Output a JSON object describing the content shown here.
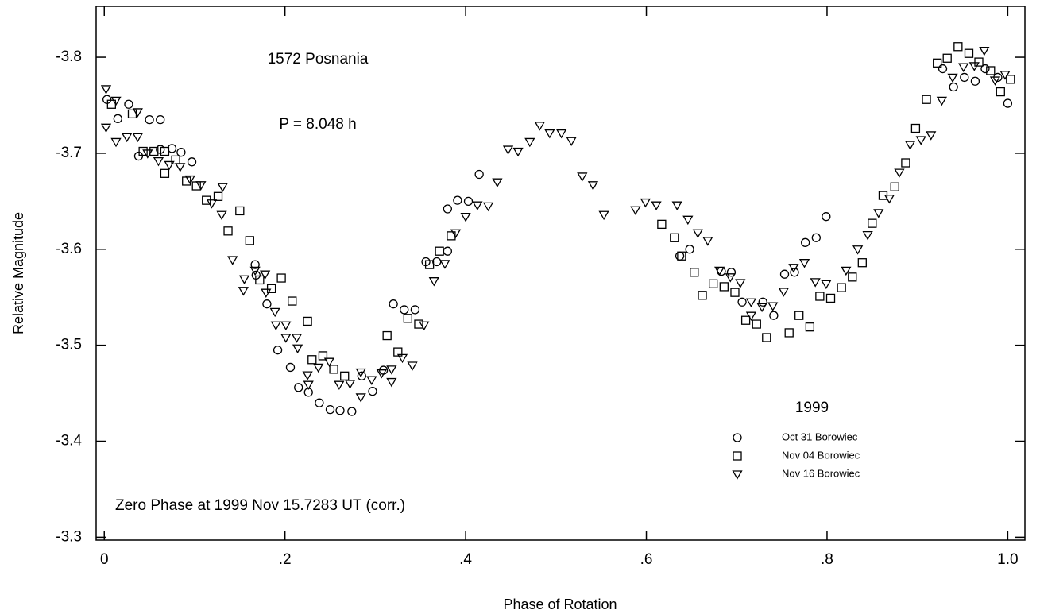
{
  "chart_data": {
    "type": "scatter",
    "annotations": [
      "1572 Posnania",
      "P = 8.048 h",
      "Zero Phase at 1999 Nov 15.7283 UT (corr.)"
    ],
    "x_label": "Phase of Rotation",
    "y_label": "Relative Magnitude",
    "legend_title": "1999",
    "legend": "lower right",
    "xlim": [
      -0.009,
      1.019
    ],
    "ylim": [
      -3.297,
      -3.853
    ],
    "xticks": [
      0,
      {
        "value": 0.2,
        "label": ".2"
      },
      {
        "value": 0.4,
        "label": ".4"
      },
      {
        "value": 0.6,
        "label": ".6"
      },
      {
        "value": 0.8,
        "label": ".8"
      },
      {
        "value": 1,
        "label": "1.0"
      }
    ],
    "yticks": [
      -3.8,
      -3.7,
      -3.6,
      -3.5,
      -3.4,
      -3.3
    ],
    "series": [
      {
        "name": "Oct 31 Borowiec",
        "color": "#000000",
        "marker": "circle",
        "x": [
          0.003,
          0.015,
          0.027,
          0.038,
          0.05,
          0.062,
          0.062,
          0.075,
          0.085,
          0.097,
          0.167,
          0.168,
          0.18,
          0.192,
          0.206,
          0.215,
          0.226,
          0.238,
          0.25,
          0.261,
          0.274,
          0.285,
          0.297,
          0.309,
          0.32,
          0.332,
          0.344,
          0.356,
          0.368,
          0.38,
          0.38,
          0.391,
          0.403,
          0.415,
          0.637,
          0.648,
          0.683,
          0.694,
          0.706,
          0.729,
          0.741,
          0.753,
          0.764,
          0.776,
          0.788,
          0.799,
          0.928,
          0.94,
          0.952,
          0.964,
          0.975,
          0.989,
          1.0
        ],
        "values": [
          -3.756,
          -3.736,
          -3.751,
          -3.697,
          -3.735,
          -3.735,
          -3.704,
          -3.705,
          -3.701,
          -3.691,
          -3.584,
          -3.573,
          -3.543,
          -3.495,
          -3.477,
          -3.456,
          -3.451,
          -3.44,
          -3.433,
          -3.432,
          -3.431,
          -3.468,
          -3.452,
          -3.474,
          -3.543,
          -3.537,
          -3.537,
          -3.587,
          -3.587,
          -3.598,
          -3.642,
          -3.651,
          -3.65,
          -3.678,
          -3.593,
          -3.6,
          -3.577,
          -3.576,
          -3.545,
          -3.545,
          -3.531,
          -3.574,
          -3.576,
          -3.607,
          -3.612,
          -3.634,
          -3.788,
          -3.769,
          -3.779,
          -3.775,
          -3.788,
          -3.779,
          -3.752
        ]
      },
      {
        "name": "Nov 04 Borowiec",
        "color": "#000000",
        "marker": "square",
        "x": [
          0.008,
          0.031,
          0.043,
          0.055,
          0.067,
          0.067,
          0.079,
          0.091,
          0.102,
          0.113,
          0.126,
          0.137,
          0.15,
          0.161,
          0.172,
          0.185,
          0.196,
          0.208,
          0.225,
          0.23,
          0.242,
          0.254,
          0.266,
          0.313,
          0.325,
          0.336,
          0.348,
          0.36,
          0.371,
          0.384,
          0.617,
          0.631,
          0.639,
          0.653,
          0.662,
          0.674,
          0.686,
          0.698,
          0.71,
          0.722,
          0.733,
          0.758,
          0.769,
          0.781,
          0.792,
          0.804,
          0.816,
          0.828,
          0.839,
          0.85,
          0.862,
          0.875,
          0.887,
          0.898,
          0.91,
          0.922,
          0.933,
          0.945,
          0.957,
          0.968,
          0.981,
          0.992,
          1.003
        ],
        "values": [
          -3.751,
          -3.741,
          -3.702,
          -3.702,
          -3.679,
          -3.702,
          -3.693,
          -3.671,
          -3.666,
          -3.651,
          -3.655,
          -3.619,
          -3.64,
          -3.609,
          -3.568,
          -3.559,
          -3.57,
          -3.546,
          -3.525,
          -3.485,
          -3.489,
          -3.475,
          -3.468,
          -3.51,
          -3.493,
          -3.528,
          -3.522,
          -3.584,
          -3.598,
          -3.614,
          -3.626,
          -3.612,
          -3.593,
          -3.576,
          -3.552,
          -3.564,
          -3.561,
          -3.555,
          -3.526,
          -3.522,
          -3.508,
          -3.513,
          -3.531,
          -3.519,
          -3.551,
          -3.549,
          -3.56,
          -3.571,
          -3.586,
          -3.627,
          -3.656,
          -3.665,
          -3.69,
          -3.726,
          -3.756,
          -3.794,
          -3.799,
          -3.811,
          -3.804,
          -3.795,
          -3.786,
          -3.764,
          -3.777
        ]
      },
      {
        "name": "Nov 16 Borowiec",
        "color": "#000000",
        "marker": "triangle-down",
        "x": [
          0.002,
          0.002,
          0.013,
          0.013,
          0.025,
          0.037,
          0.037,
          0.048,
          0.06,
          0.072,
          0.084,
          0.095,
          0.107,
          0.119,
          0.13,
          0.131,
          0.142,
          0.154,
          0.155,
          0.167,
          0.178,
          0.179,
          0.189,
          0.19,
          0.201,
          0.201,
          0.213,
          0.214,
          0.225,
          0.226,
          0.237,
          0.249,
          0.26,
          0.272,
          0.284,
          0.284,
          0.296,
          0.307,
          0.318,
          0.318,
          0.33,
          0.341,
          0.354,
          0.365,
          0.377,
          0.389,
          0.4,
          0.413,
          0.425,
          0.435,
          0.447,
          0.458,
          0.471,
          0.482,
          0.493,
          0.506,
          0.517,
          0.529,
          0.541,
          0.553,
          0.588,
          0.599,
          0.611,
          0.634,
          0.646,
          0.657,
          0.668,
          0.681,
          0.693,
          0.704,
          0.716,
          0.716,
          0.728,
          0.74,
          0.752,
          0.763,
          0.775,
          0.787,
          0.799,
          0.821,
          0.834,
          0.845,
          0.857,
          0.869,
          0.88,
          0.892,
          0.904,
          0.915,
          0.927,
          0.939,
          0.951,
          0.963,
          0.974,
          0.986,
          0.997
        ],
        "values": [
          -3.767,
          -3.727,
          -3.755,
          -3.712,
          -3.717,
          -3.743,
          -3.717,
          -3.7,
          -3.692,
          -3.688,
          -3.686,
          -3.673,
          -3.667,
          -3.648,
          -3.636,
          -3.665,
          -3.589,
          -3.557,
          -3.569,
          -3.578,
          -3.574,
          -3.555,
          -3.535,
          -3.521,
          -3.508,
          -3.521,
          -3.508,
          -3.497,
          -3.469,
          -3.459,
          -3.477,
          -3.483,
          -3.459,
          -3.46,
          -3.446,
          -3.472,
          -3.464,
          -3.471,
          -3.462,
          -3.475,
          -3.487,
          -3.479,
          -3.521,
          -3.567,
          -3.585,
          -3.617,
          -3.634,
          -3.646,
          -3.645,
          -3.67,
          -3.704,
          -3.702,
          -3.712,
          -3.729,
          -3.721,
          -3.721,
          -3.713,
          -3.676,
          -3.667,
          -3.636,
          -3.641,
          -3.649,
          -3.646,
          -3.646,
          -3.631,
          -3.617,
          -3.609,
          -3.578,
          -3.571,
          -3.565,
          -3.531,
          -3.545,
          -3.54,
          -3.541,
          -3.556,
          -3.581,
          -3.586,
          -3.566,
          -3.564,
          -3.578,
          -3.6,
          -3.615,
          -3.638,
          -3.653,
          -3.68,
          -3.709,
          -3.714,
          -3.719,
          -3.755,
          -3.779,
          -3.79,
          -3.791,
          -3.807,
          -3.776,
          -3.782
        ]
      }
    ]
  }
}
